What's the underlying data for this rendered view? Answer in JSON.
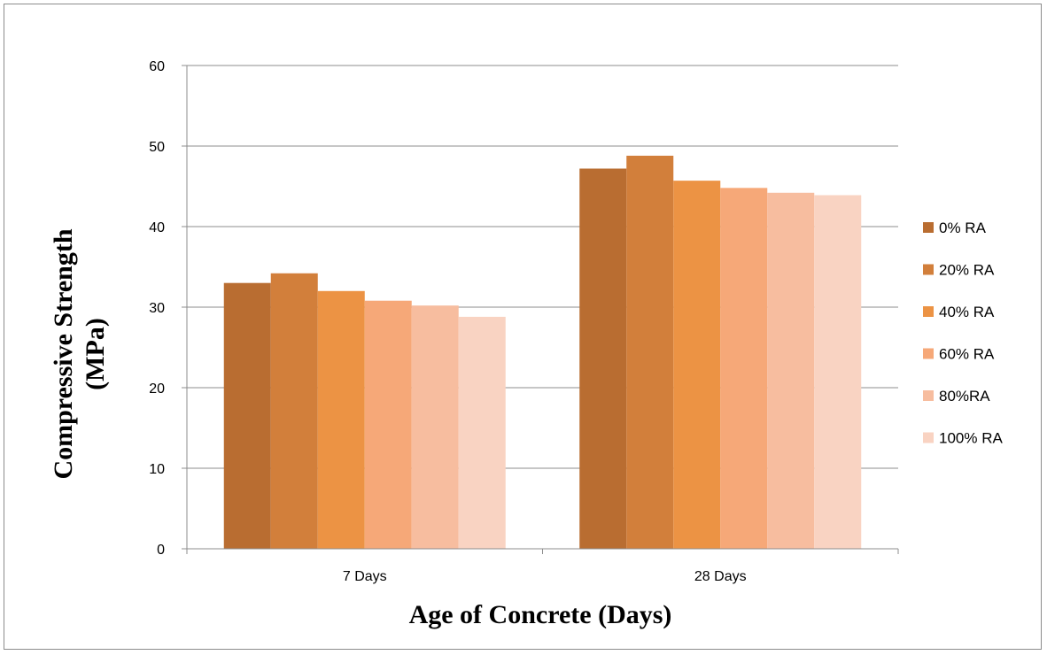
{
  "chart_data": {
    "type": "bar",
    "categories": [
      "7 Days",
      "28 Days"
    ],
    "series": [
      {
        "name": "0% RA",
        "color": "#B96D31",
        "values": [
          33.0,
          47.2
        ]
      },
      {
        "name": "20% RA",
        "color": "#D27F3B",
        "values": [
          34.2,
          48.8
        ]
      },
      {
        "name": "40% RA",
        "color": "#EC9344",
        "values": [
          32.0,
          45.7
        ]
      },
      {
        "name": "60% RA",
        "color": "#F6A878",
        "values": [
          30.8,
          44.8
        ]
      },
      {
        "name": "80%RA",
        "color": "#F7BD9F",
        "values": [
          30.2,
          44.2
        ]
      },
      {
        "name": "100% RA",
        "color": "#F9D3C2",
        "values": [
          28.8,
          43.9
        ]
      }
    ],
    "xlabel": "Age of Concrete (Days)",
    "ylabel_line1": "Compressive Strength",
    "ylabel_line2": "(MPa)",
    "ylim": [
      0,
      60
    ],
    "yticks": [
      "0",
      "10",
      "20",
      "30",
      "40",
      "50",
      "60"
    ],
    "grid": true,
    "legend": "right"
  }
}
